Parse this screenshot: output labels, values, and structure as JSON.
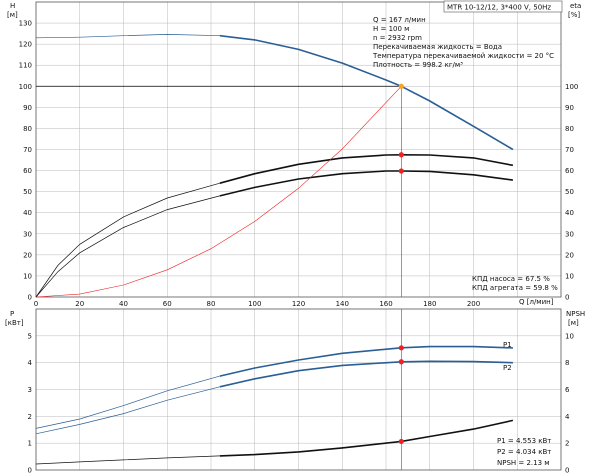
{
  "colors": {
    "blue": "#2a5e96",
    "black": "#111111",
    "red": "#ee2222",
    "orange": "#f5a623",
    "grid": "#b8b8b8"
  },
  "title_box": "MTR 10-12/12, 3*400 V, 50Hz",
  "duty_point_info": [
    "Q = 167 л/мин",
    "H = 100 м",
    "n = 2932 rpm",
    "Перекачиваемая жидкость = Вода",
    "Температура перекачиваемой жидкости = 20 °C",
    "Плотность = 998.2 кг/м³"
  ],
  "efficiency_info": [
    "КПД насоса = 67.5 %",
    "КПД агрегата = 59.8 %"
  ],
  "power_info": [
    "P1 = 4.553 кВт",
    "P2 = 4.034 кВт",
    "NPSH = 2.13 м"
  ],
  "chart_data": [
    {
      "type": "line",
      "title": "",
      "left_axis_label": [
        "H",
        "[м]"
      ],
      "right_axis_label": [
        "eta",
        "[%]"
      ],
      "xlabel": "Q [л/мин]",
      "xlim": [
        0,
        240
      ],
      "ylim_left": [
        0,
        140
      ],
      "ylim_right": [
        0,
        140
      ],
      "x_ticks": [
        0,
        20,
        40,
        60,
        80,
        100,
        120,
        140,
        160,
        180,
        200
      ],
      "y_ticks_left": [
        0,
        10,
        20,
        30,
        40,
        50,
        60,
        70,
        80,
        90,
        100,
        110,
        120,
        130
      ],
      "y_ticks_right": [
        0,
        10,
        20,
        30,
        40,
        50,
        60,
        70,
        80,
        90,
        100
      ],
      "grid": true,
      "duty_point": {
        "x": 167,
        "y": 100
      },
      "series": [
        {
          "color": "blue",
          "extrapolated": [
            [
              0,
              123
            ],
            [
              20,
              123.3
            ],
            [
              40,
              124
            ],
            [
              60,
              124.6
            ],
            [
              84,
              124
            ]
          ],
          "values": [
            [
              84,
              124
            ],
            [
              100,
              122
            ],
            [
              120,
              117.5
            ],
            [
              140,
              111
            ],
            [
              160,
              103
            ],
            [
              167,
              100
            ],
            [
              180,
              93
            ],
            [
              200,
              81
            ],
            [
              218,
              70
            ]
          ]
        },
        {
          "color": "black",
          "extrapolated": [
            [
              0,
              0
            ],
            [
              10,
              15
            ],
            [
              20,
              25
            ],
            [
              40,
              38
            ],
            [
              60,
              47
            ],
            [
              84,
              54
            ]
          ],
          "values": [
            [
              84,
              54
            ],
            [
              100,
              58.5
            ],
            [
              120,
              63
            ],
            [
              140,
              66
            ],
            [
              160,
              67.4
            ],
            [
              167,
              67.5
            ],
            [
              180,
              67.4
            ],
            [
              200,
              66
            ],
            [
              218,
              62.5
            ]
          ]
        },
        {
          "color": "black",
          "extrapolated": [
            [
              0,
              0
            ],
            [
              10,
              12
            ],
            [
              20,
              21
            ],
            [
              40,
              33
            ],
            [
              60,
              41.5
            ],
            [
              84,
              48
            ]
          ],
          "values": [
            [
              84,
              48
            ],
            [
              100,
              52
            ],
            [
              120,
              56
            ],
            [
              140,
              58.5
            ],
            [
              160,
              59.8
            ],
            [
              167,
              59.8
            ],
            [
              180,
              59.6
            ],
            [
              200,
              58
            ],
            [
              218,
              55.5
            ]
          ]
        },
        {
          "color": "red",
          "thin": true,
          "values": [
            [
              0,
              0
            ],
            [
              20,
              1.4
            ],
            [
              40,
              5.7
            ],
            [
              60,
              12.9
            ],
            [
              80,
              22.9
            ],
            [
              100,
              35.9
            ],
            [
              120,
              51.6
            ],
            [
              140,
              70.3
            ],
            [
              167,
              100
            ]
          ]
        }
      ],
      "markers": [
        {
          "x": 167,
          "y": 100,
          "color": "orange"
        },
        {
          "x": 167,
          "y": 67.5,
          "color": "red"
        },
        {
          "x": 167,
          "y": 59.8,
          "color": "red"
        }
      ]
    },
    {
      "type": "line",
      "title": "",
      "left_axis_label": [
        "P",
        "[кВт]"
      ],
      "right_axis_label": [
        "NPSH",
        "[м]"
      ],
      "xlim": [
        0,
        240
      ],
      "ylim_left": [
        0,
        6
      ],
      "ylim_right": [
        0,
        12
      ],
      "y_ticks_left": [
        0,
        1,
        2,
        3,
        4,
        5
      ],
      "y_ticks_right": [
        0,
        2,
        4,
        6,
        8,
        10
      ],
      "grid": true,
      "series": [
        {
          "name": "P1",
          "color": "blue",
          "extrapolated": [
            [
              0,
              1.55
            ],
            [
              20,
              1.9
            ],
            [
              40,
              2.4
            ],
            [
              60,
              2.95
            ],
            [
              84,
              3.5
            ]
          ],
          "values": [
            [
              84,
              3.5
            ],
            [
              100,
              3.8
            ],
            [
              120,
              4.1
            ],
            [
              140,
              4.35
            ],
            [
              167,
              4.553
            ],
            [
              180,
              4.6
            ],
            [
              200,
              4.6
            ],
            [
              218,
              4.55
            ]
          ]
        },
        {
          "name": "P2",
          "color": "blue",
          "extrapolated": [
            [
              0,
              1.35
            ],
            [
              20,
              1.7
            ],
            [
              40,
              2.1
            ],
            [
              60,
              2.6
            ],
            [
              84,
              3.1
            ]
          ],
          "values": [
            [
              84,
              3.1
            ],
            [
              100,
              3.4
            ],
            [
              120,
              3.7
            ],
            [
              140,
              3.9
            ],
            [
              167,
              4.034
            ],
            [
              180,
              4.05
            ],
            [
              200,
              4.04
            ],
            [
              218,
              4.0
            ]
          ]
        },
        {
          "name": "NPSH",
          "color": "black",
          "axis": "right",
          "extrapolated": [
            [
              0,
              0.45
            ],
            [
              20,
              0.6
            ],
            [
              40,
              0.75
            ],
            [
              60,
              0.9
            ],
            [
              84,
              1.05
            ]
          ],
          "values": [
            [
              84,
              1.05
            ],
            [
              100,
              1.15
            ],
            [
              120,
              1.35
            ],
            [
              140,
              1.65
            ],
            [
              167,
              2.13
            ],
            [
              180,
              2.5
            ],
            [
              200,
              3.05
            ],
            [
              218,
              3.7
            ]
          ]
        }
      ],
      "markers": [
        {
          "x": 167,
          "y": 4.553,
          "color": "red"
        },
        {
          "x": 167,
          "y": 4.034,
          "color": "red"
        },
        {
          "x": 167,
          "y": 2.13,
          "color": "red",
          "axis": "right"
        }
      ]
    }
  ]
}
